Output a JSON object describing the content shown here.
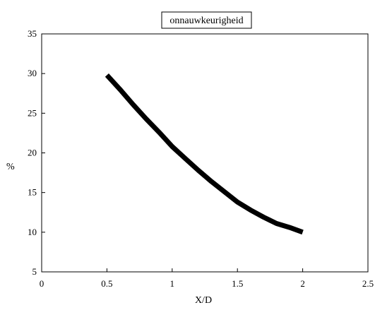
{
  "chart_data": {
    "type": "line",
    "title": "onnauwkeurigheid",
    "xlabel": "X/D",
    "ylabel": "%",
    "xlim": [
      0,
      2.5
    ],
    "ylim": [
      5,
      35
    ],
    "x_ticks": [
      0,
      0.5,
      1,
      1.5,
      2,
      2.5
    ],
    "x_tick_labels": [
      "0",
      "0.5",
      "1",
      "1.5",
      "2",
      "2.5"
    ],
    "y_ticks": [
      5,
      10,
      15,
      20,
      25,
      30,
      35
    ],
    "y_tick_labels": [
      "5",
      "10",
      "15",
      "20",
      "25",
      "30",
      "35"
    ],
    "grid": false,
    "legend": "none",
    "series": [
      {
        "color": "#000000",
        "x": [
          0.5,
          0.6,
          0.7,
          0.8,
          0.9,
          1.0,
          1.1,
          1.2,
          1.3,
          1.4,
          1.5,
          1.6,
          1.7,
          1.8,
          1.9,
          2.0
        ],
        "y": [
          29.8,
          28.0,
          26.1,
          24.3,
          22.6,
          20.8,
          19.3,
          17.8,
          16.4,
          15.1,
          13.8,
          12.8,
          11.9,
          11.1,
          10.6,
          10.0
        ]
      }
    ]
  }
}
